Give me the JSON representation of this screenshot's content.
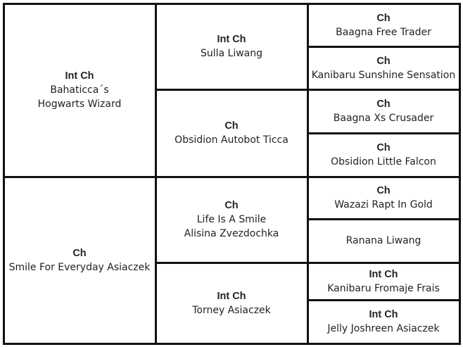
{
  "pedigree": {
    "generations": [
      [
        {
          "title": "Int Ch",
          "lines": [
            "Bahaticca´s",
            "Hogwarts Wizard"
          ]
        },
        {
          "title": "Ch",
          "lines": [
            "Smile For Everyday Asiaczek"
          ]
        }
      ],
      [
        {
          "title": "Int Ch",
          "lines": [
            "Sulla Liwang"
          ]
        },
        {
          "title": "Ch",
          "lines": [
            "Obsidion Autobot Ticca"
          ]
        },
        {
          "title": "Ch",
          "lines": [
            "Life Is A Smile",
            "Alisina Zvezdochka"
          ]
        },
        {
          "title": "Int Ch",
          "lines": [
            "Torney Asiaczek"
          ]
        }
      ],
      [
        {
          "title": "Ch",
          "lines": [
            "Baagna Free Trader"
          ]
        },
        {
          "title": "Ch",
          "lines": [
            "Kanibaru Sunshine Sensation"
          ]
        },
        {
          "title": "Ch",
          "lines": [
            "Baagna Xs Crusader"
          ]
        },
        {
          "title": "Ch",
          "lines": [
            "Obsidion Little Falcon"
          ]
        },
        {
          "title": "Ch",
          "lines": [
            "Wazazi Rapt In Gold"
          ]
        },
        {
          "lines": [
            "Ranana Liwang"
          ]
        },
        {
          "title": "Int Ch",
          "lines": [
            "Kanibaru Fromaje Frais"
          ]
        },
        {
          "title": "Int Ch",
          "lines": [
            "Jelly Joshreen Asiaczek"
          ]
        }
      ]
    ]
  }
}
